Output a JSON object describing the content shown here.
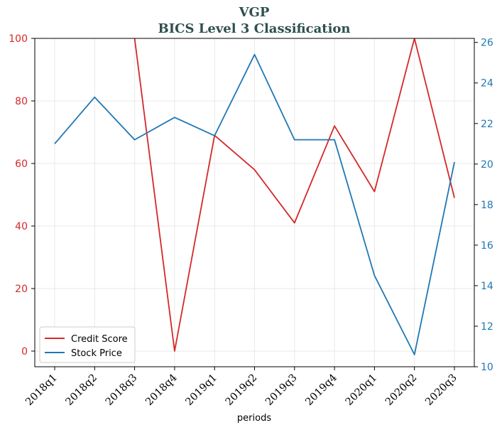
{
  "chart_data": {
    "type": "line",
    "title": "VGP",
    "subtitle": "BICS Level 3 Classification",
    "xlabel": "periods",
    "categories": [
      "2018q1",
      "2018q2",
      "2018q3",
      "2018q4",
      "2019q1",
      "2019q2",
      "2019q3",
      "2019q4",
      "2020q1",
      "2020q2",
      "2020q3"
    ],
    "series": [
      {
        "name": "Credit Score",
        "axis": "left",
        "color": "#d62728",
        "values": [
          null,
          null,
          100,
          0,
          69,
          58,
          41,
          72,
          51,
          100,
          49
        ]
      },
      {
        "name": "Stock Price",
        "axis": "right",
        "color": "#1f77b4",
        "values": [
          21.0,
          23.3,
          21.2,
          22.3,
          21.4,
          25.4,
          21.2,
          21.2,
          14.5,
          10.6,
          20.1
        ]
      }
    ],
    "left_axis": {
      "ylim": [
        -5,
        100
      ],
      "ticks": [
        0,
        20,
        40,
        60,
        80,
        100
      ],
      "color": "#d62728"
    },
    "right_axis": {
      "ylim": [
        10,
        26.2
      ],
      "ticks": [
        10,
        12,
        14,
        16,
        18,
        20,
        22,
        24,
        26
      ],
      "color": "#1f77b4"
    },
    "grid": true,
    "legend_position": "bottom-left"
  }
}
